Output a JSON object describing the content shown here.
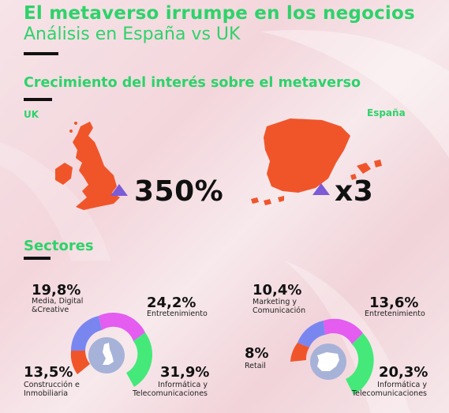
{
  "header": {
    "title": "El metaverso irrumpe en los negocios",
    "subtitle": "Análisis en España vs UK"
  },
  "growth": {
    "heading": "Crecimiento del interés sobre el metaverso",
    "uk": {
      "label": "UK",
      "value": "350%",
      "trend_icon": "up-triangle-icon"
    },
    "spain": {
      "label": "España",
      "value": "x3",
      "trend_icon": "up-triangle-icon"
    }
  },
  "sectors": {
    "heading": "Sectores",
    "uk": [
      {
        "value": "19,8%",
        "label": [
          "Media, Digital",
          "&Creative"
        ]
      },
      {
        "value": "24,2%",
        "label": [
          "Entretenimiento"
        ]
      },
      {
        "value": "31,9%",
        "label": [
          "Informática y",
          "Telecomunicaciones"
        ]
      },
      {
        "value": "13,5%",
        "label": [
          "Construcción e",
          "Inmobiliaria"
        ]
      }
    ],
    "spain": [
      {
        "value": "10,4%",
        "label": [
          "Marketing y",
          "Comunicación"
        ]
      },
      {
        "value": "13,6%",
        "label": [
          "Entretenimiento"
        ]
      },
      {
        "value": "8%",
        "label": [
          "Retail"
        ]
      },
      {
        "value": "20,3%",
        "label": [
          "Informática y",
          "Telecomunicaciones"
        ]
      }
    ]
  },
  "colors": {
    "accent_green": "#2ed26a",
    "map_orange": "#f0552a",
    "triangle_purple": "#7c5bd6",
    "slice_blue": "#7a86f0",
    "slice_magenta": "#e45cf0",
    "slice_green": "#45e97a",
    "slice_orange": "#f0552a"
  }
}
